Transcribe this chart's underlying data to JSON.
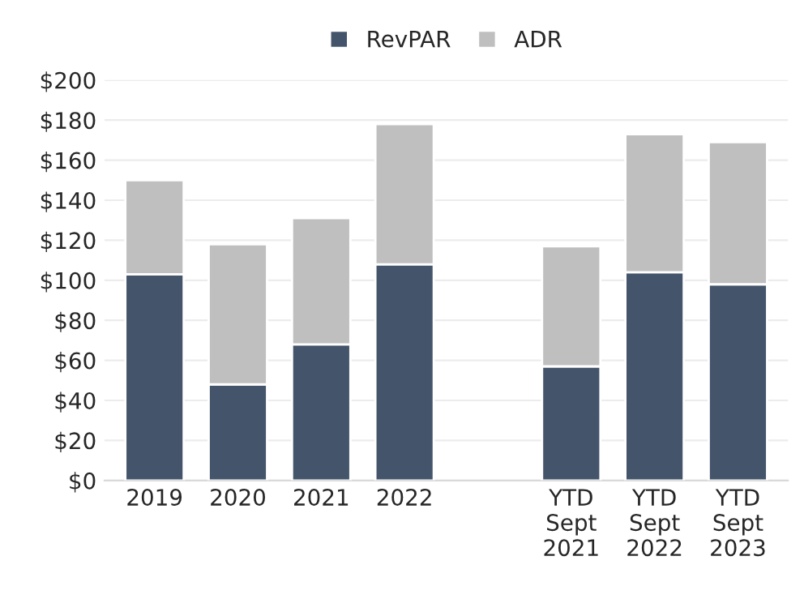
{
  "chart_data": {
    "type": "bar",
    "stacked": true,
    "categories": [
      "2019",
      "2020",
      "2021",
      "2022",
      null,
      "YTD\nSept\n2021",
      "YTD\nSept\n2022",
      "YTD\nSept\n2023"
    ],
    "series": [
      {
        "name": "RevPAR",
        "color": "#44546a",
        "values": [
          103,
          48,
          68,
          108,
          null,
          57,
          104,
          98
        ]
      },
      {
        "name": "ADR",
        "color": "#bfbfbf",
        "values": [
          47,
          70,
          63,
          70,
          null,
          60,
          69,
          71
        ]
      }
    ],
    "ylim": [
      0,
      200
    ],
    "yticks": [
      {
        "value": 0,
        "label": "$0"
      },
      {
        "value": 20,
        "label": "$20"
      },
      {
        "value": 40,
        "label": "$40"
      },
      {
        "value": 60,
        "label": "$60"
      },
      {
        "value": 80,
        "label": "$80"
      },
      {
        "value": 100,
        "label": "$100"
      },
      {
        "value": 120,
        "label": "$120"
      },
      {
        "value": 140,
        "label": "$140"
      },
      {
        "value": 160,
        "label": "$160"
      },
      {
        "value": 180,
        "label": "$180"
      },
      {
        "value": 200,
        "label": "$200"
      }
    ],
    "grid": "y",
    "legend": "top"
  }
}
